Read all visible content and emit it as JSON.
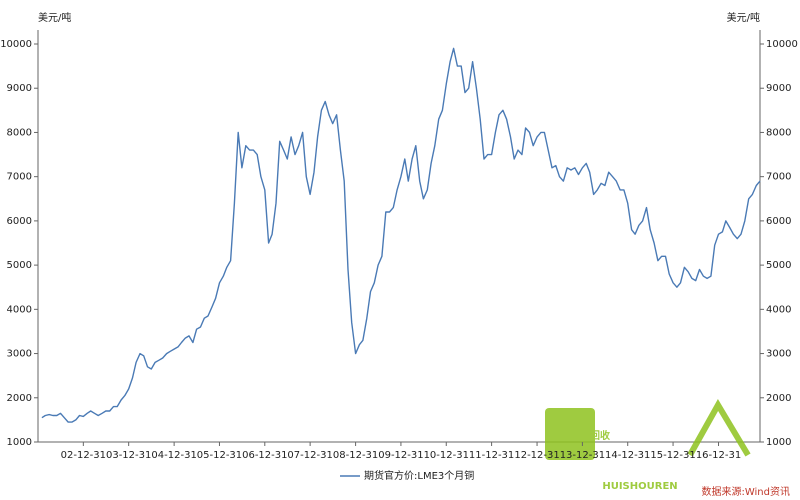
{
  "chart_data": {
    "type": "line",
    "ylabel": "美元/吨",
    "y2label": "美元/吨",
    "source": "数据来源:Wind资讯",
    "watermark": {
      "text": "回收",
      "subtext": "HUISHOUREN"
    },
    "xlim": [
      "01-12-31",
      "17-11-30"
    ],
    "xticks": [
      "02-12-31",
      "03-12-31",
      "04-12-31",
      "05-12-31",
      "06-12-31",
      "07-12-31",
      "08-12-31",
      "09-12-31",
      "10-12-31",
      "11-12-31",
      "12-12-31",
      "13-12-31",
      "14-12-31",
      "15-12-31",
      "16-12-31"
    ],
    "ylim": [
      1000,
      10000
    ],
    "yticks": [
      1000,
      2000,
      3000,
      4000,
      5000,
      6000,
      7000,
      8000,
      9000,
      10000
    ],
    "y2lim": [
      1000,
      10000
    ],
    "y2ticks": [
      1000,
      2000,
      3000,
      4000,
      5000,
      6000,
      7000,
      8000,
      9000,
      10000
    ],
    "grid": false,
    "x": [
      "02-01-31",
      "02-02-28",
      "02-03-31",
      "02-04-30",
      "02-05-31",
      "02-06-30",
      "02-07-31",
      "02-08-31",
      "02-09-30",
      "02-10-31",
      "02-11-30",
      "02-12-31",
      "03-01-31",
      "03-02-28",
      "03-03-31",
      "03-04-30",
      "03-05-31",
      "03-06-30",
      "03-07-31",
      "03-08-31",
      "03-09-30",
      "03-10-31",
      "03-11-30",
      "03-12-31",
      "04-01-31",
      "04-02-29",
      "04-03-31",
      "04-04-30",
      "04-05-31",
      "04-06-30",
      "04-07-31",
      "04-08-31",
      "04-09-30",
      "04-10-31",
      "04-11-30",
      "04-12-31",
      "05-01-31",
      "05-02-28",
      "05-03-31",
      "05-04-30",
      "05-05-31",
      "05-06-30",
      "05-07-31",
      "05-08-31",
      "05-09-30",
      "05-10-31",
      "05-11-30",
      "05-12-31",
      "06-01-31",
      "06-02-28",
      "06-03-31",
      "06-04-30",
      "06-05-31",
      "06-06-30",
      "06-07-31",
      "06-08-31",
      "06-09-30",
      "06-10-31",
      "06-11-30",
      "06-12-31",
      "07-01-31",
      "07-02-28",
      "07-03-31",
      "07-04-30",
      "07-05-31",
      "07-06-30",
      "07-07-31",
      "07-08-31",
      "07-09-30",
      "07-10-31",
      "07-11-30",
      "07-12-31",
      "08-01-31",
      "08-02-29",
      "08-03-31",
      "08-04-30",
      "08-05-31",
      "08-06-30",
      "08-07-31",
      "08-08-31",
      "08-09-30",
      "08-10-31",
      "08-11-30",
      "08-12-31",
      "09-01-31",
      "09-02-28",
      "09-03-31",
      "09-04-30",
      "09-05-31",
      "09-06-30",
      "09-07-31",
      "09-08-31",
      "09-09-30",
      "09-10-31",
      "09-11-30",
      "09-12-31",
      "10-01-31",
      "10-02-28",
      "10-03-31",
      "10-04-30",
      "10-05-31",
      "10-06-30",
      "10-07-31",
      "10-08-31",
      "10-09-30",
      "10-10-31",
      "10-11-30",
      "10-12-31",
      "11-01-31",
      "11-02-28",
      "11-03-31",
      "11-04-30",
      "11-05-31",
      "11-06-30",
      "11-07-31",
      "11-08-31",
      "11-09-30",
      "11-10-31",
      "11-11-30",
      "11-12-31",
      "12-01-31",
      "12-02-29",
      "12-03-31",
      "12-04-30",
      "12-05-31",
      "12-06-30",
      "12-07-31",
      "12-08-31",
      "12-09-30",
      "12-10-31",
      "12-11-30",
      "12-12-31",
      "13-01-31",
      "13-02-28",
      "13-03-31",
      "13-04-30",
      "13-05-31",
      "13-06-30",
      "13-07-31",
      "13-08-31",
      "13-09-30",
      "13-10-31",
      "13-11-30",
      "13-12-31",
      "14-01-31",
      "14-02-28",
      "14-03-31",
      "14-04-30",
      "14-05-31",
      "14-06-30",
      "14-07-31",
      "14-08-31",
      "14-09-30",
      "14-10-31",
      "14-11-30",
      "14-12-31",
      "15-01-31",
      "15-02-28",
      "15-03-31",
      "15-04-30",
      "15-05-31",
      "15-06-30",
      "15-07-31",
      "15-08-31",
      "15-09-30",
      "15-10-31",
      "15-11-30",
      "15-12-31",
      "16-01-31",
      "16-02-29",
      "16-03-31",
      "16-04-30",
      "16-05-31",
      "16-06-30",
      "16-07-31",
      "16-08-31",
      "16-09-30",
      "16-10-31",
      "16-11-30",
      "16-12-31",
      "17-01-31",
      "17-02-28",
      "17-03-31",
      "17-04-30",
      "17-05-31",
      "17-06-30",
      "17-07-31",
      "17-08-31",
      "17-09-30",
      "17-10-31",
      "17-11-30"
    ],
    "series": [
      {
        "name": "期货官方价:LME3个月铜",
        "color": "#4a7ab5",
        "values": [
          1550,
          1600,
          1620,
          1600,
          1600,
          1650,
          1550,
          1450,
          1450,
          1500,
          1600,
          1580,
          1650,
          1700,
          1650,
          1600,
          1650,
          1700,
          1700,
          1800,
          1800,
          1950,
          2050,
          2200,
          2450,
          2800,
          3000,
          2950,
          2700,
          2650,
          2800,
          2850,
          2900,
          3000,
          3050,
          3100,
          3150,
          3250,
          3350,
          3400,
          3250,
          3550,
          3600,
          3800,
          3850,
          4050,
          4250,
          4600,
          4750,
          4950,
          5100,
          6400,
          8000,
          7200,
          7700,
          7600,
          7600,
          7500,
          7000,
          6700,
          5500,
          5700,
          6400,
          7800,
          7600,
          7400,
          7900,
          7500,
          7700,
          8000,
          7000,
          6600,
          7100,
          7900,
          8500,
          8700,
          8400,
          8200,
          8400,
          7600,
          6900,
          4900,
          3700,
          3000,
          3200,
          3300,
          3800,
          4400,
          4600,
          5000,
          5200,
          6200,
          6200,
          6300,
          6700,
          7000,
          7400,
          6900,
          7400,
          7700,
          6900,
          6500,
          6700,
          7300,
          7700,
          8300,
          8500,
          9100,
          9600,
          9900,
          9500,
          9500,
          8900,
          9000,
          9600,
          9000,
          8300,
          7400,
          7500,
          7500,
          8000,
          8400,
          8500,
          8300,
          7900,
          7400,
          7600,
          7500,
          8100,
          8000,
          7700,
          7900,
          8000,
          8000,
          7600,
          7200,
          7250,
          7000,
          6900,
          7200,
          7150,
          7200,
          7050,
          7200,
          7300,
          7100,
          6600,
          6700,
          6850,
          6800,
          7100,
          7000,
          6900,
          6700,
          6700,
          6400,
          5800,
          5700,
          5900,
          6000,
          6300,
          5800,
          5500,
          5100,
          5200,
          5200,
          4800,
          4600,
          4500,
          4600,
          4950,
          4850,
          4700,
          4650,
          4900,
          4750,
          4700,
          4750,
          5450,
          5700,
          5750,
          6000,
          5850,
          5700,
          5600,
          5700,
          6000,
          6500,
          6600,
          6800,
          6900
        ]
      }
    ]
  }
}
